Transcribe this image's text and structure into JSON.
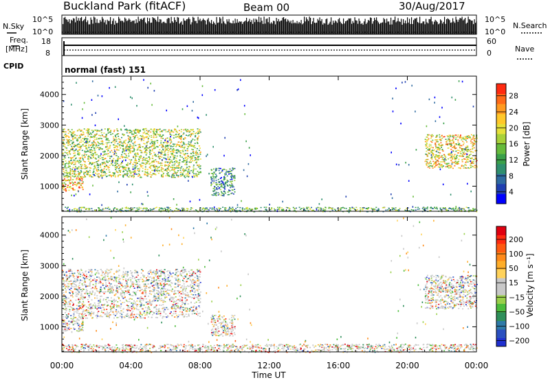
{
  "header": {
    "site": "Buckland Park (fitACF)",
    "beam": "Beam 00",
    "date": "30/Aug/2017"
  },
  "summary": {
    "nsky_label": "N.Sky",
    "nsearch_label": "N.Search",
    "freq_label_1": "Freq.",
    "freq_label_2": "[MHz]",
    "nave_label": "Nave",
    "cpid_label": "CPID",
    "cpid_value": "normal (fast) 151",
    "nsky_ticks": [
      "10^5",
      "10^0"
    ],
    "freq_ticks": [
      "18",
      "8"
    ],
    "nave_ticks": [
      "60",
      "0"
    ],
    "nsky_nsearch_ticks": [
      "10^5",
      "10^0"
    ]
  },
  "chart_data": [
    {
      "type": "heatmap",
      "name": "power",
      "ylabel": "Slant Range [km]",
      "xlabel": "Time UT",
      "xticks": [
        "00:00",
        "04:00",
        "08:00",
        "12:00",
        "16:00",
        "20:00",
        "00:00"
      ],
      "xlim_hours": [
        0,
        24
      ],
      "ylim": [
        180,
        4600
      ],
      "yticks": [
        1000,
        2000,
        3000,
        4000
      ],
      "colorbar": {
        "label": "Power [dB]",
        "ticks": [
          "4",
          "8",
          "12",
          "16",
          "20",
          "24",
          "28"
        ],
        "colors": [
          "#0000ff",
          "#1f3fb0",
          "#2e6aa0",
          "#2f8f6e",
          "#3aa04a",
          "#66bb3c",
          "#a8d13a",
          "#e6e03a",
          "#ffc82a",
          "#ff9a20",
          "#ff6a18",
          "#ff2a10"
        ]
      },
      "regions": [
        {
          "t": [
            0.0,
            8.0
          ],
          "r": [
            1300,
            2900
          ],
          "level": 0.55
        },
        {
          "t": [
            0.0,
            1.2
          ],
          "r": [
            850,
            1300
          ],
          "level": 0.75
        },
        {
          "t": [
            8.6,
            10.0
          ],
          "r": [
            700,
            1600
          ],
          "level": 0.3
        },
        {
          "t": [
            21.0,
            24.0
          ],
          "r": [
            1600,
            2700
          ],
          "level": 0.65
        },
        {
          "t": [
            0.0,
            24.0
          ],
          "r": [
            180,
            330
          ],
          "level": 0.4
        }
      ]
    },
    {
      "type": "heatmap",
      "name": "velocity",
      "ylabel": "Slant Range [km]",
      "xlabel": "Time UT",
      "xticks": [
        "00:00",
        "04:00",
        "08:00",
        "12:00",
        "16:00",
        "20:00",
        "00:00"
      ],
      "xlim_hours": [
        0,
        24
      ],
      "ylim": [
        180,
        4600
      ],
      "yticks": [
        1000,
        2000,
        3000,
        4000
      ],
      "colorbar": {
        "label": "Velocity [m s⁻¹]",
        "ticks": [
          "200",
          "100",
          "50",
          "15",
          "−15",
          "−50",
          "−100",
          "−200"
        ],
        "colors": [
          "#1f2fd0",
          "#2a4fc0",
          "#2e7aa8",
          "#2e8f5a",
          "#4cbc3c",
          "#9ad04a",
          "#c8c8c8",
          "#c8c8c8",
          "#ffd25a",
          "#ffae2a",
          "#ff8a1a",
          "#ff5a10",
          "#ff2a10",
          "#e00010"
        ]
      },
      "regions": [
        {
          "t": [
            0.0,
            8.0
          ],
          "r": [
            1300,
            2900
          ],
          "level": 0.5
        },
        {
          "t": [
            0.0,
            1.2
          ],
          "r": [
            850,
            1300
          ],
          "level": 0.5
        },
        {
          "t": [
            8.6,
            10.0
          ],
          "r": [
            700,
            1400
          ],
          "level": 0.55
        },
        {
          "t": [
            21.0,
            24.0
          ],
          "r": [
            1600,
            2700
          ],
          "level": 0.5
        },
        {
          "t": [
            0.0,
            24.0
          ],
          "r": [
            180,
            450
          ],
          "level": 0.6
        }
      ]
    }
  ]
}
